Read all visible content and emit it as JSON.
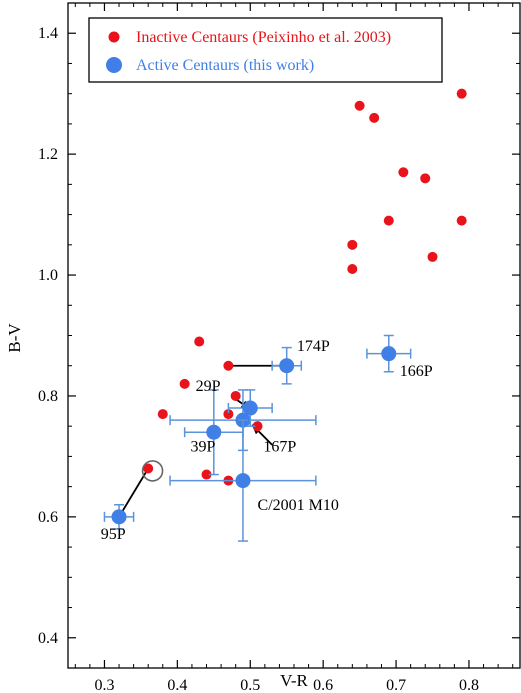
{
  "colors": {
    "inactive": "#e8131b",
    "active": "#3f7fe6",
    "errorbar": "#5b93dc",
    "axis": "#000000"
  },
  "chart_data": {
    "type": "scatter",
    "xlabel": "V-R",
    "ylabel": "B-V",
    "xlim": [
      0.25,
      0.87
    ],
    "ylim": [
      0.35,
      1.45
    ],
    "x_ticks": [
      "0.3",
      "0.4",
      "0.5",
      "0.6",
      "0.7",
      "0.8"
    ],
    "y_ticks": [
      "0.4",
      "0.6",
      "0.8",
      "1.0",
      "1.2",
      "1.4"
    ],
    "legend_placement": "top-left",
    "legend": {
      "inactive": "Inactive Centaurs (Peixinho et al. 2003)",
      "active": "Active Centaurs (this work)"
    },
    "series": [
      {
        "name": "Inactive Centaurs (Peixinho et al. 2003)",
        "points": [
          {
            "x": 0.65,
            "y": 1.28
          },
          {
            "x": 0.79,
            "y": 1.3
          },
          {
            "x": 0.67,
            "y": 1.26
          },
          {
            "x": 0.71,
            "y": 1.17
          },
          {
            "x": 0.74,
            "y": 1.16
          },
          {
            "x": 0.69,
            "y": 1.09
          },
          {
            "x": 0.79,
            "y": 1.09
          },
          {
            "x": 0.64,
            "y": 1.05
          },
          {
            "x": 0.75,
            "y": 1.03
          },
          {
            "x": 0.64,
            "y": 1.01
          },
          {
            "x": 0.43,
            "y": 0.89
          },
          {
            "x": 0.47,
            "y": 0.85
          },
          {
            "x": 0.41,
            "y": 0.82
          },
          {
            "x": 0.48,
            "y": 0.8
          },
          {
            "x": 0.38,
            "y": 0.77
          },
          {
            "x": 0.47,
            "y": 0.77
          },
          {
            "x": 0.51,
            "y": 0.75
          },
          {
            "x": 0.44,
            "y": 0.67
          },
          {
            "x": 0.47,
            "y": 0.66
          },
          {
            "x": 0.36,
            "y": 0.68
          }
        ]
      },
      {
        "name": "Active Centaurs (this work)",
        "points": [
          {
            "x": 0.32,
            "y": 0.6,
            "xerr": 0.02,
            "yerr": 0.02
          },
          {
            "x": 0.45,
            "y": 0.74,
            "xerr": 0.04,
            "yerr": 0.07
          },
          {
            "x": 0.49,
            "y": 0.76,
            "xerr": 0.1,
            "yerr": 0.05
          },
          {
            "x": 0.5,
            "y": 0.78,
            "xerr": 0.03,
            "yerr": 0.03
          },
          {
            "x": 0.49,
            "y": 0.66,
            "xerr": 0.1,
            "yerr": 0.1
          },
          {
            "x": 0.55,
            "y": 0.85,
            "xerr": 0.02,
            "yerr": 0.03
          },
          {
            "x": 0.69,
            "y": 0.87,
            "xerr": 0.03,
            "yerr": 0.03
          }
        ]
      }
    ],
    "annotations": [
      {
        "text": "174P",
        "x": 0.564,
        "y": 0.874
      },
      {
        "text": "166P",
        "x": 0.705,
        "y": 0.833
      },
      {
        "text": "29P",
        "x": 0.425,
        "y": 0.808
      },
      {
        "text": "39P",
        "x": 0.418,
        "y": 0.708
      },
      {
        "text": "167P",
        "x": 0.518,
        "y": 0.708
      },
      {
        "text": "C/2001 M10",
        "x": 0.51,
        "y": 0.611
      },
      {
        "text": "95P",
        "x": 0.295,
        "y": 0.563
      }
    ],
    "links": [
      {
        "from": [
          0.47,
          0.85
        ],
        "to": [
          0.55,
          0.85
        ]
      },
      {
        "from": [
          0.36,
          0.68
        ],
        "to": [
          0.32,
          0.6
        ]
      },
      {
        "from": [
          0.48,
          0.795
        ],
        "to": [
          0.5,
          0.778
        ],
        "arrow": true
      },
      {
        "from": [
          0.53,
          0.719
        ],
        "to": [
          0.503,
          0.752
        ],
        "arrow": true
      }
    ],
    "highlight_circle": {
      "x": 0.366,
      "y": 0.676
    }
  }
}
